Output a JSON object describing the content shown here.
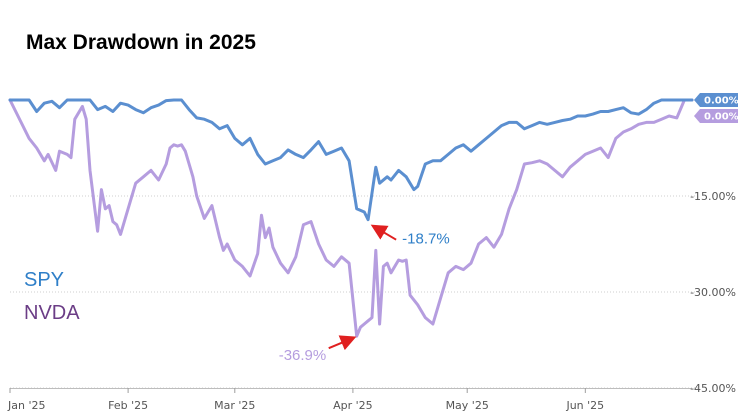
{
  "chart_data": {
    "type": "line",
    "title": "Max Drawdown in 2025",
    "xlabel": "",
    "ylabel": "",
    "ylim": [
      -45,
      0
    ],
    "y_ticks": [
      -15,
      -30,
      -45
    ],
    "y_tick_labels": [
      "-15.00%",
      "-30.00%",
      "-45.00%"
    ],
    "x_tick_labels": [
      "Jan '25",
      "Feb '25",
      "Mar '25",
      "Apr '25",
      "May '25",
      "Jun '25"
    ],
    "x_tick_days": [
      0,
      31,
      59,
      90,
      120,
      151
    ],
    "x_range_days": [
      0,
      179
    ],
    "grid": true,
    "colors": {
      "SPY": "#5b8fd0",
      "NVDA": "#b59ddf",
      "SPY_label": "#2f7fc8",
      "NVDA_label": "#6b3d86",
      "arrow": "#e02020",
      "grid": "#cfcfcf"
    },
    "series": [
      {
        "name": "SPY",
        "end_label": "0.00%",
        "x": [
          0,
          5,
          7,
          9,
          11,
          13,
          15,
          17,
          19,
          21,
          23,
          25,
          27,
          29,
          31,
          33,
          35,
          37,
          39,
          41,
          43,
          45,
          47,
          49,
          51,
          53,
          55,
          57,
          59,
          61,
          63,
          65,
          67,
          69,
          71,
          73,
          75,
          77,
          79,
          81,
          83,
          85,
          87,
          89,
          91,
          93,
          94,
          96,
          97,
          99,
          100,
          102,
          104,
          106,
          107,
          109,
          111,
          113,
          115,
          117,
          119,
          121,
          123,
          125,
          127,
          129,
          131,
          133,
          135,
          137,
          139,
          141,
          143,
          145,
          147,
          149,
          151,
          153,
          155,
          157,
          159,
          161,
          163,
          165,
          167,
          169,
          171,
          173,
          175,
          177,
          179
        ],
        "values": [
          0.0,
          0.0,
          -1.8,
          -0.5,
          -0.2,
          -1.2,
          0.0,
          0.0,
          0.0,
          0.0,
          -1.5,
          -1.0,
          -1.8,
          -0.5,
          -0.8,
          -1.5,
          -2.0,
          -1.2,
          -0.8,
          -0.1,
          0.0,
          0.0,
          -1.5,
          -2.8,
          -3.0,
          -3.5,
          -4.5,
          -4.0,
          -6.0,
          -7.0,
          -6.0,
          -8.5,
          -10.0,
          -9.5,
          -9.0,
          -7.8,
          -8.5,
          -9.0,
          -7.8,
          -6.5,
          -8.5,
          -8.0,
          -7.5,
          -9.5,
          -17.0,
          -17.5,
          -18.7,
          -10.5,
          -13.0,
          -12.0,
          -12.5,
          -11.0,
          -12.0,
          -14.0,
          -13.5,
          -10.0,
          -9.5,
          -9.5,
          -8.5,
          -7.5,
          -7.0,
          -8.0,
          -7.0,
          -6.0,
          -5.0,
          -4.0,
          -3.5,
          -3.5,
          -4.5,
          -4.0,
          -3.5,
          -3.8,
          -3.5,
          -3.2,
          -3.0,
          -2.5,
          -2.5,
          -2.2,
          -1.8,
          -1.8,
          -1.5,
          -1.2,
          -2.0,
          -2.2,
          -1.5,
          -0.5,
          0.0,
          0.0,
          0.0,
          0.0,
          0.0
        ]
      },
      {
        "name": "NVDA",
        "end_label": "0.00%",
        "x": [
          0,
          5,
          7,
          9,
          10,
          12,
          13,
          15,
          16,
          17,
          19,
          20,
          21,
          23,
          24,
          25,
          26,
          27,
          28,
          29,
          31,
          33,
          35,
          37,
          39,
          41,
          42,
          43,
          44,
          45,
          46,
          47,
          48,
          49,
          51,
          53,
          55,
          56,
          57,
          59,
          61,
          63,
          65,
          66,
          67,
          68,
          69,
          71,
          73,
          75,
          77,
          79,
          81,
          83,
          85,
          87,
          89,
          91,
          92,
          93,
          94,
          95,
          96,
          97,
          98,
          99,
          100,
          102,
          103,
          104,
          105,
          107,
          109,
          111,
          113,
          115,
          117,
          119,
          121,
          123,
          125,
          127,
          129,
          131,
          133,
          135,
          137,
          139,
          141,
          143,
          145,
          147,
          149,
          151,
          153,
          155,
          157,
          159,
          161,
          163,
          165,
          167,
          169,
          171,
          173,
          175,
          177,
          179
        ],
        "values": [
          0.0,
          -6.0,
          -7.5,
          -9.5,
          -8.5,
          -11.0,
          -8.0,
          -8.5,
          -9.0,
          -3.0,
          -1.0,
          -3.0,
          -11.0,
          -20.5,
          -14.0,
          -17.0,
          -16.5,
          -19.0,
          -19.5,
          -21.0,
          -17.0,
          -13.0,
          -12.0,
          -11.0,
          -12.5,
          -10.0,
          -7.5,
          -7.0,
          -7.2,
          -7.0,
          -8.0,
          -10.0,
          -12.0,
          -15.0,
          -18.5,
          -16.5,
          -21.5,
          -23.5,
          -22.5,
          -25.0,
          -26.0,
          -27.5,
          -24.0,
          -18.0,
          -21.5,
          -20.0,
          -23.0,
          -25.5,
          -27.0,
          -24.5,
          -19.5,
          -19.0,
          -22.5,
          -25.0,
          -26.0,
          -24.5,
          -25.5,
          -36.9,
          -35.5,
          -35.0,
          -34.5,
          -34.0,
          -23.5,
          -35.0,
          -26.0,
          -25.5,
          -27.0,
          -25.0,
          -25.2,
          -25.0,
          -30.5,
          -32.0,
          -34.0,
          -35.0,
          -31.0,
          -27.0,
          -26.0,
          -26.5,
          -25.5,
          -22.5,
          -21.5,
          -23.0,
          -21.0,
          -17.0,
          -14.0,
          -10.0,
          -9.8,
          -9.5,
          -10.0,
          -11.0,
          -12.0,
          -10.5,
          -9.5,
          -8.5,
          -8.0,
          -7.5,
          -9.0,
          -6.0,
          -5.0,
          -4.5,
          -3.8,
          -3.5,
          -3.5,
          -3.0,
          -2.5,
          -2.8,
          0.0,
          0.0
        ]
      }
    ],
    "annotations": [
      {
        "series": "SPY",
        "text": "-18.7%",
        "x": 94,
        "y": -18.7
      },
      {
        "series": "NVDA",
        "text": "-36.9%",
        "x": 91,
        "y": -36.9
      }
    ],
    "legend": [
      {
        "name": "SPY",
        "label": "SPY"
      },
      {
        "name": "NVDA",
        "label": "NVDA"
      }
    ]
  }
}
